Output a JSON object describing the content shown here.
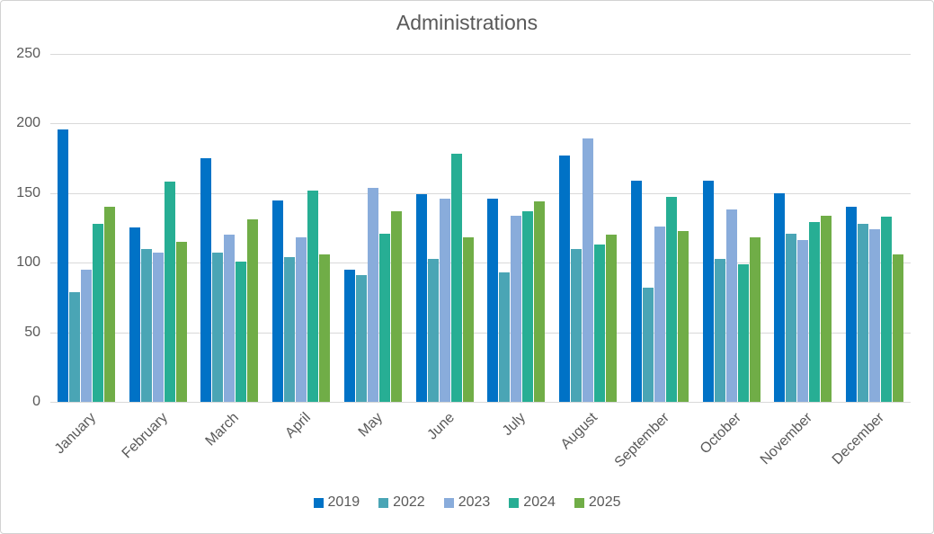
{
  "title": "Administrations",
  "chart_data": {
    "type": "bar",
    "title": "Administrations",
    "categories": [
      "January",
      "February",
      "March",
      "April",
      "May",
      "June",
      "July",
      "August",
      "September",
      "October",
      "November",
      "December"
    ],
    "series": [
      {
        "name": "2019",
        "color": "#0072C6",
        "values": [
          196,
          125,
          175,
          145,
          95,
          149,
          146,
          177,
          159,
          159,
          150,
          140
        ]
      },
      {
        "name": "2022",
        "color": "#4AA5B5",
        "values": [
          79,
          110,
          107,
          104,
          91,
          103,
          93,
          110,
          82,
          103,
          121,
          128
        ]
      },
      {
        "name": "2023",
        "color": "#89ACDB",
        "values": [
          95,
          107,
          120,
          118,
          154,
          146,
          134,
          189,
          126,
          138,
          116,
          124
        ]
      },
      {
        "name": "2024",
        "color": "#27AE94",
        "values": [
          128,
          158,
          101,
          152,
          121,
          178,
          137,
          113,
          147,
          99,
          129,
          133
        ]
      },
      {
        "name": "2025",
        "color": "#70AD47",
        "values": [
          140,
          115,
          131,
          106,
          137,
          118,
          144,
          120,
          123,
          118,
          134,
          106
        ]
      }
    ],
    "xlabel": "",
    "ylabel": "",
    "ylim": [
      0,
      250
    ],
    "yticks": [
      0,
      50,
      100,
      150,
      200,
      250
    ],
    "grid": true,
    "legend_position": "bottom",
    "colors": {
      "title_text": "#595959",
      "axis_text": "#595959",
      "gridline": "#d9d9d9"
    }
  }
}
